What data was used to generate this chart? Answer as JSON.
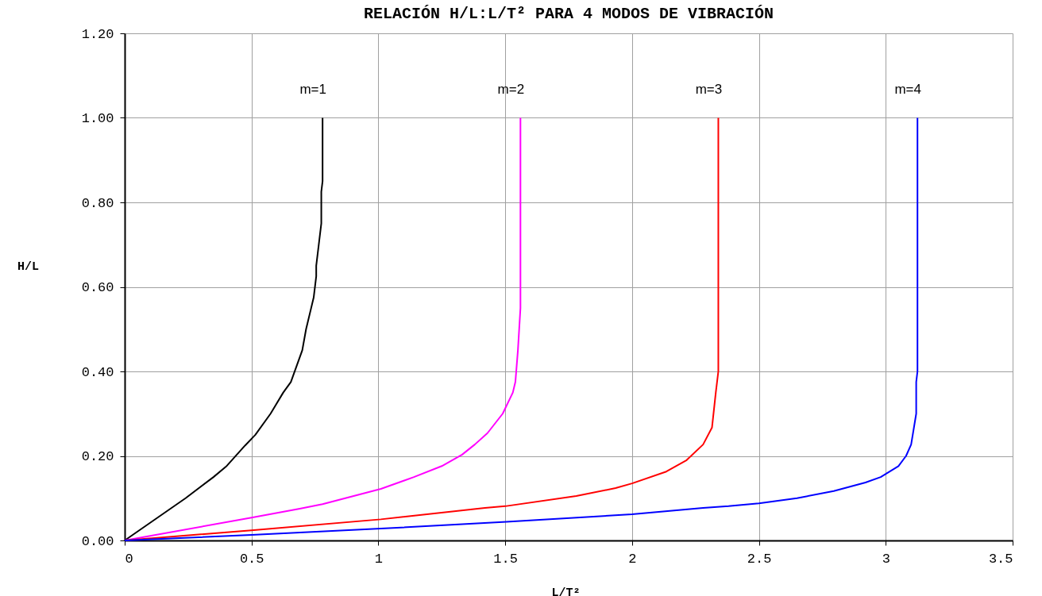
{
  "chart_data": {
    "type": "line",
    "title": "RELACIÓN H/L:L/T² PARA 4 MODOS DE VIBRACIÓN",
    "xlabel": "L/T²",
    "ylabel": "H/L",
    "xlim": [
      0,
      3.5
    ],
    "xticks": [
      0,
      0.5,
      1,
      1.5,
      2,
      2.5,
      3,
      3.5
    ],
    "ylim": [
      0,
      1.2
    ],
    "yticks": [
      {
        "value": 0,
        "label": "0.00"
      },
      {
        "value": 0.2,
        "label": "0.20"
      },
      {
        "value": 0.4,
        "label": "0.40"
      },
      {
        "value": 0.6,
        "label": "0.60"
      },
      {
        "value": 0.8,
        "label": "0.80"
      },
      {
        "value": 1,
        "label": "1.00"
      },
      {
        "value": 1.2,
        "label": "1.20"
      }
    ],
    "grid": true,
    "marker": "none",
    "line_style": "solid",
    "series": [
      {
        "name": "m=1",
        "color": "#000000",
        "x": [
          0,
          0.24,
          0.35,
          0.4,
          0.475,
          0.515,
          0.575,
          0.625,
          0.655,
          0.7,
          0.715,
          0.735,
          0.745,
          0.755,
          0.755,
          0.765,
          0.775,
          0.775,
          0.78,
          0.78,
          0.78
        ],
        "values": [
          0,
          0.1,
          0.15,
          0.175,
          0.225,
          0.25,
          0.3,
          0.35,
          0.375,
          0.45,
          0.5,
          0.55,
          0.575,
          0.625,
          0.65,
          0.7,
          0.75,
          0.825,
          0.85,
          0.95,
          1.0
        ]
      },
      {
        "name": "m=2",
        "color": "#ff00ff",
        "x": [
          0,
          0.5,
          0.69,
          0.78,
          1.01,
          1.14,
          1.25,
          1.33,
          1.38,
          1.43,
          1.49,
          1.53,
          1.54,
          1.55,
          1.56,
          1.56
        ],
        "values": [
          0,
          0.054,
          0.075,
          0.086,
          0.122,
          0.15,
          0.176,
          0.203,
          0.227,
          0.254,
          0.3,
          0.35,
          0.375,
          0.45,
          0.55,
          1.0
        ]
      },
      {
        "name": "m=3",
        "color": "#ff0000",
        "x": [
          0,
          0.5,
          1.01,
          1.42,
          1.5,
          1.78,
          1.935,
          2.0,
          2.135,
          2.215,
          2.28,
          2.315,
          2.33,
          2.34,
          2.34
        ],
        "values": [
          0,
          0.024,
          0.05,
          0.077,
          0.081,
          0.105,
          0.124,
          0.135,
          0.163,
          0.19,
          0.227,
          0.267,
          0.35,
          0.4,
          1.0
        ]
      },
      {
        "name": "m=4",
        "color": "#0000ff",
        "x": [
          0,
          0.5,
          1.01,
          1.505,
          2.0,
          2.28,
          2.38,
          2.5,
          2.65,
          2.795,
          2.92,
          2.98,
          3.05,
          3.08,
          3.1,
          3.12,
          3.12,
          3.125,
          3.125
        ],
        "values": [
          0,
          0.013,
          0.028,
          0.044,
          0.062,
          0.077,
          0.081,
          0.088,
          0.1,
          0.117,
          0.137,
          0.15,
          0.176,
          0.2,
          0.227,
          0.3,
          0.375,
          0.4,
          1.0
        ]
      }
    ]
  }
}
